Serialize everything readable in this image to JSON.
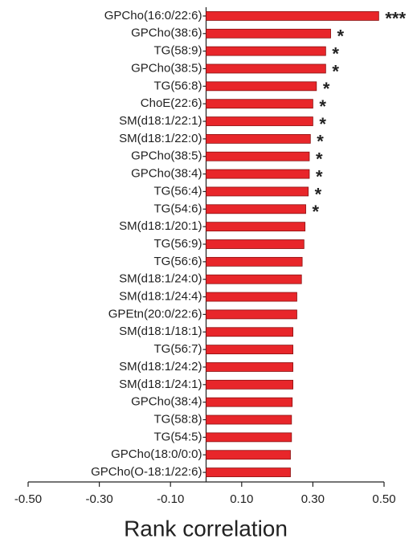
{
  "chart_data": {
    "type": "barh",
    "xlabel": "Rank correlation",
    "categories": [
      "GPCho(16:0/22:6)",
      "GPCho(38:6)",
      "TG(58:9)",
      "GPCho(38:5)",
      "TG(56:8)",
      "ChoE(22:6)",
      "SM(d18:1/22:1)",
      "SM(d18:1/22:0)",
      "GPCho(38:5)",
      "GPCho(38:4)",
      "TG(56:4)",
      "TG(54:6)",
      "SM(d18:1/20:1)",
      "TG(56:9)",
      "TG(56:6)",
      "SM(d18:1/24:0)",
      "SM(d18:1/24:4)",
      "GPEtn(20:0/22:6)",
      "SM(d18:1/18:1)",
      "TG(56:7)",
      "SM(d18:1/24:2)",
      "SM(d18:1/24:1)",
      "GPCho(38:4)",
      "TG(58:8)",
      "TG(54:5)",
      "GPCho(18:0/0:0)",
      "GPCho(O-18:1/22:6)"
    ],
    "values": [
      0.485,
      0.35,
      0.336,
      0.336,
      0.31,
      0.3,
      0.3,
      0.293,
      0.29,
      0.29,
      0.287,
      0.28,
      0.278,
      0.275,
      0.27,
      0.268,
      0.255,
      0.255,
      0.244,
      0.244,
      0.244,
      0.244,
      0.242,
      0.24,
      0.24,
      0.237,
      0.237
    ],
    "significance": [
      "***",
      "*",
      "*",
      "*",
      "*",
      "*",
      "*",
      "*",
      "*",
      "*",
      "*",
      "*",
      null,
      null,
      null,
      null,
      null,
      null,
      null,
      null,
      null,
      null,
      null,
      null,
      null,
      null,
      null
    ],
    "color": "#e8262a",
    "xlim": [
      -0.5,
      0.5
    ],
    "xticks": [
      {
        "value": -0.5,
        "label": "-0.50"
      },
      {
        "value": -0.3,
        "label": "-0.30"
      },
      {
        "value": -0.1,
        "label": "-0.10"
      },
      {
        "value": 0.1,
        "label": "0.10"
      },
      {
        "value": 0.3,
        "label": "0.30"
      },
      {
        "value": 0.5,
        "label": "0.50"
      }
    ],
    "grid": false
  }
}
